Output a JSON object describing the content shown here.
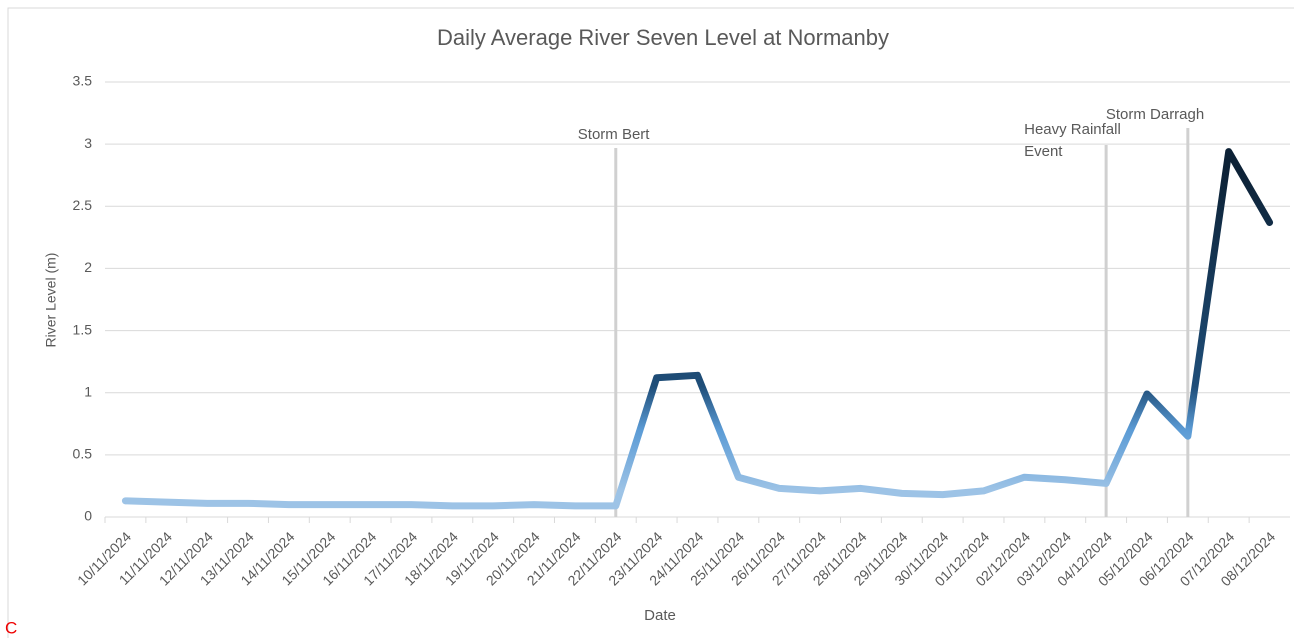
{
  "chart_data": {
    "type": "line",
    "title": "Daily Average River Seven Level at Normanby",
    "x_label": "Date",
    "y_label": "River Level (m)",
    "categories": [
      "10/11/2024",
      "11/11/2024",
      "12/11/2024",
      "13/11/2024",
      "14/11/2024",
      "15/11/2024",
      "16/11/2024",
      "17/11/2024",
      "18/11/2024",
      "19/11/2024",
      "20/11/2024",
      "21/11/2024",
      "22/11/2024",
      "23/11/2024",
      "24/11/2024",
      "25/11/2024",
      "26/11/2024",
      "27/11/2024",
      "28/11/2024",
      "29/11/2024",
      "30/11/2024",
      "01/12/2024",
      "02/12/2024",
      "03/12/2024",
      "04/12/2024",
      "05/12/2024",
      "06/12/2024",
      "07/12/2024",
      "08/12/2024"
    ],
    "values": [
      0.13,
      0.12,
      0.11,
      0.11,
      0.1,
      0.1,
      0.1,
      0.1,
      0.09,
      0.09,
      0.1,
      0.09,
      0.09,
      1.12,
      1.14,
      0.32,
      0.23,
      0.21,
      0.23,
      0.19,
      0.18,
      0.21,
      0.32,
      0.3,
      0.27,
      0.99,
      0.65,
      2.94,
      2.37
    ],
    "ylim": [
      0,
      3.5
    ],
    "yticks": [
      0,
      0.5,
      1,
      1.5,
      2,
      2.5,
      3,
      3.5
    ],
    "grid": true,
    "annotations": [
      {
        "text": "Storm Bert",
        "category": 12
      },
      {
        "text": "Heavy Rainfall Event",
        "category": 24
      },
      {
        "text": "Storm Darragh",
        "category": 26
      }
    ],
    "footnote": "C"
  }
}
